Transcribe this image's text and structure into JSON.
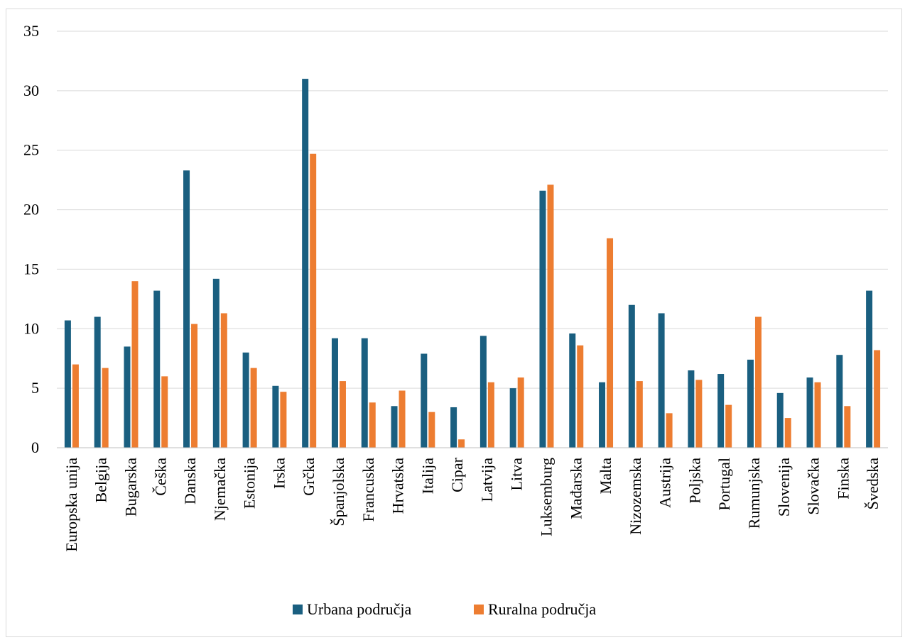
{
  "chart_data": {
    "type": "bar",
    "categories": [
      "Europska unija",
      "Belgija",
      "Bugarska",
      "Češka",
      "Danska",
      "Njemačka",
      "Estonija",
      "Irska",
      "Grčka",
      "Španjolska",
      "Francuska",
      "Hrvatska",
      "Italija",
      "Cipar",
      "Latvija",
      "Litva",
      "Luksemburg",
      "Mađarska",
      "Malta",
      "Nizozemska",
      "Austrija",
      "Poljska",
      "Portugal",
      "Rumunjska",
      "Slovenija",
      "Slovačka",
      "Finska",
      "Švedska"
    ],
    "series": [
      {
        "name": "Urbana područja",
        "color": "#1a5f80",
        "values": [
          10.7,
          11.0,
          8.5,
          13.2,
          23.3,
          14.2,
          8.0,
          5.2,
          31.0,
          9.2,
          9.2,
          3.5,
          7.9,
          3.4,
          9.4,
          5.0,
          21.6,
          9.6,
          5.5,
          12.0,
          11.3,
          6.5,
          6.2,
          7.4,
          4.6,
          5.9,
          7.8,
          13.2
        ]
      },
      {
        "name": "Ruralna područja",
        "color": "#ed7d31",
        "values": [
          7.0,
          6.7,
          14.0,
          6.0,
          10.4,
          11.3,
          6.7,
          4.7,
          24.7,
          5.6,
          3.8,
          4.8,
          3.0,
          0.7,
          5.5,
          5.9,
          22.1,
          8.6,
          17.6,
          5.6,
          2.9,
          5.7,
          3.6,
          11.0,
          2.5,
          5.5,
          3.5,
          8.2
        ]
      }
    ],
    "yticks": [
      "0",
      "5",
      "10",
      "15",
      "20",
      "25",
      "30",
      "35"
    ],
    "ylim": [
      0,
      35
    ],
    "grid": true,
    "legend_position": "bottom"
  }
}
